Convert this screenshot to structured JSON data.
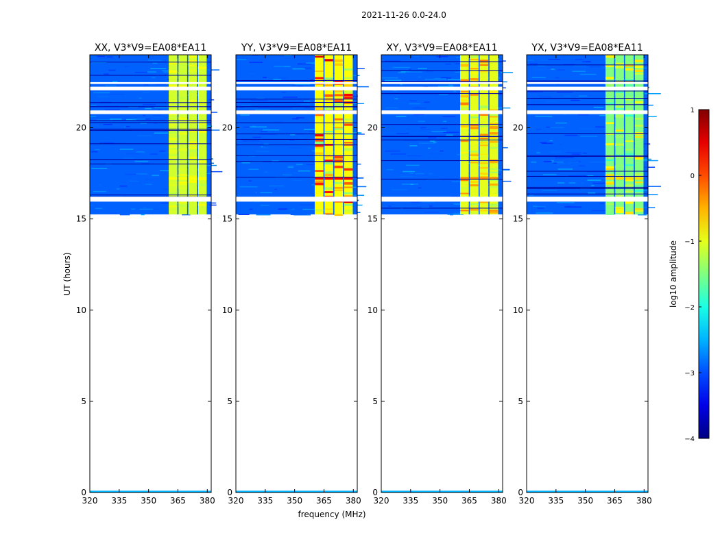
{
  "chart_data": {
    "type": "heatmap",
    "suptitle": "2021-11-26 0.0-24.0",
    "xlabel": "frequency (MHz)",
    "ylabel": "UT (hours)",
    "xlim": [
      320,
      382
    ],
    "ylim": [
      0,
      24
    ],
    "xticks": [
      320,
      335,
      350,
      365,
      380
    ],
    "yticks": [
      0,
      5,
      10,
      15,
      20
    ],
    "panels": [
      {
        "title": "XX, V3*V9=EA08*EA11",
        "rfi_level": 0.58,
        "peak_level": 0.62
      },
      {
        "title": "YY, V3*V9=EA08*EA11",
        "rfi_level": 0.62,
        "peak_level": 0.88
      },
      {
        "title": "XY, V3*V9=EA08*EA11",
        "rfi_level": 0.6,
        "peak_level": 0.74
      },
      {
        "title": "YX, V3*V9=EA08*EA11",
        "rfi_level": 0.5,
        "peak_level": 0.66
      }
    ],
    "data_extent_hours": [
      15.25,
      24
    ],
    "baseline_hours": [
      0,
      0.1
    ],
    "background_level": 0.22,
    "rfi_band_mhz": [
      360,
      380
    ],
    "rfi_channel_gaps_mhz": [
      365,
      370,
      375
    ],
    "flagged_gaps_hours": [
      [
        15.95,
        16.22
      ],
      [
        20.75,
        20.95
      ],
      [
        22.05,
        22.25
      ],
      [
        22.4,
        22.5
      ]
    ],
    "colorbar": {
      "label": "log10 amplitude",
      "min": -4,
      "max": 1,
      "ticks": [
        1,
        0,
        -1,
        -2,
        -3,
        -4
      ],
      "colormap": "jet"
    }
  }
}
